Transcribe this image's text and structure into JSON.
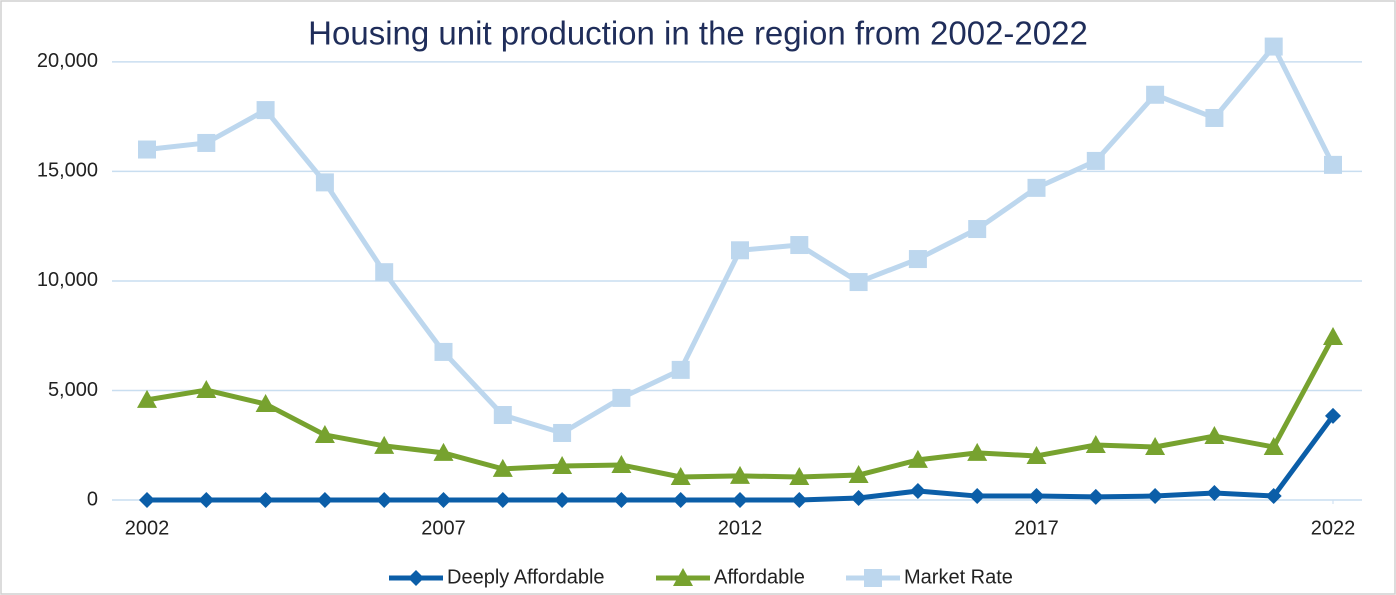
{
  "chart_data": {
    "type": "line",
    "title": "Housing unit production in the region from 2002-2022",
    "x": [
      2002,
      2003,
      2004,
      2005,
      2006,
      2007,
      2008,
      2009,
      2010,
      2011,
      2012,
      2013,
      2014,
      2015,
      2016,
      2017,
      2018,
      2019,
      2020,
      2021,
      2022
    ],
    "xlim": [
      2002,
      2022
    ],
    "xticks": [
      2002,
      2007,
      2012,
      2017,
      2022
    ],
    "ylim": [
      0,
      21000
    ],
    "yticks": [
      0,
      {
        "value": 5000,
        "label": "5,000"
      },
      {
        "value": 10000,
        "label": "10,000"
      },
      {
        "value": 15000,
        "label": "15,000"
      },
      {
        "value": 20000,
        "label": "20,000"
      }
    ],
    "grid": true,
    "legend": "bottom",
    "series": [
      {
        "name": "Deeply Affordable",
        "color": "#0b5ea8",
        "marker": "diamond",
        "values": [
          0,
          0,
          0,
          0,
          0,
          0,
          0,
          0,
          0,
          0,
          0,
          0,
          90,
          410,
          180,
          180,
          140,
          180,
          320,
          180,
          3840
        ]
      },
      {
        "name": "Affordable",
        "color": "#77a22f",
        "marker": "triangle",
        "values": [
          4570,
          5020,
          4380,
          2970,
          2470,
          2150,
          1420,
          1550,
          1600,
          1050,
          1100,
          1050,
          1140,
          1830,
          2150,
          2010,
          2510,
          2420,
          2920,
          2420,
          7440
        ]
      },
      {
        "name": "Market Rate",
        "color": "#bdd7ee",
        "marker": "square",
        "values": [
          16000,
          16300,
          17800,
          14500,
          10400,
          6760,
          3880,
          3060,
          4660,
          5940,
          11400,
          11640,
          9950,
          11000,
          12370,
          14250,
          15480,
          18500,
          17440,
          20700,
          15300
        ]
      }
    ]
  }
}
